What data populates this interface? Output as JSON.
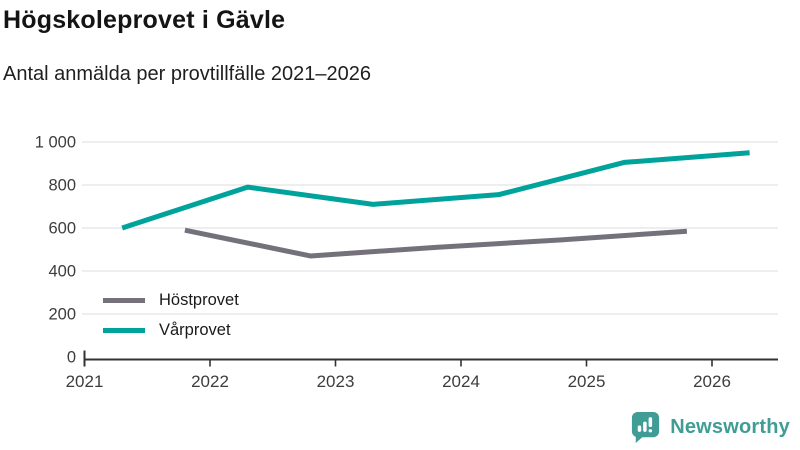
{
  "header": {
    "title": "Högskoleprovet i Gävle",
    "subtitle": "Antal anmälda per provtillfälle 2021–2026"
  },
  "chart_data": {
    "type": "line",
    "title": "Högskoleprovet i Gävle",
    "subtitle": "Antal anmälda per provtillfälle 2021–2026",
    "xlabel": "",
    "ylabel": "",
    "x_ticks": [
      2021,
      2022,
      2023,
      2024,
      2025,
      2026
    ],
    "x_tick_labels": [
      "2021",
      "2022",
      "2023",
      "2024",
      "2025",
      "2026"
    ],
    "xlim": [
      2021,
      2026.55
    ],
    "ylim": [
      0,
      1000
    ],
    "y_ticks": [
      0,
      200,
      400,
      600,
      800,
      1000
    ],
    "y_tick_labels": [
      "0",
      "200",
      "400",
      "600",
      "800",
      "1 000"
    ],
    "grid": true,
    "legend_position": "inside bottom-left",
    "series": [
      {
        "name": "Höstprovet",
        "color": "#75717b",
        "x": [
          2021.8,
          2022.8,
          2023.8,
          2024.8,
          2025.8
        ],
        "values": [
          590,
          470,
          510,
          545,
          585
        ]
      },
      {
        "name": "Vårprovet",
        "color": "#00a39b",
        "x": [
          2021.3,
          2022.3,
          2023.3,
          2024.3,
          2025.3,
          2026.3
        ],
        "values": [
          600,
          790,
          710,
          755,
          905,
          950
        ]
      }
    ]
  },
  "style": {
    "gridline_color": "#e3e3e3",
    "axis_color": "#333333",
    "tick_label_color": "#3d3d3d"
  },
  "branding": {
    "name": "Newsworthy",
    "color": "#3f9d95",
    "icon": "bar-chart-speech-bubble-icon"
  }
}
